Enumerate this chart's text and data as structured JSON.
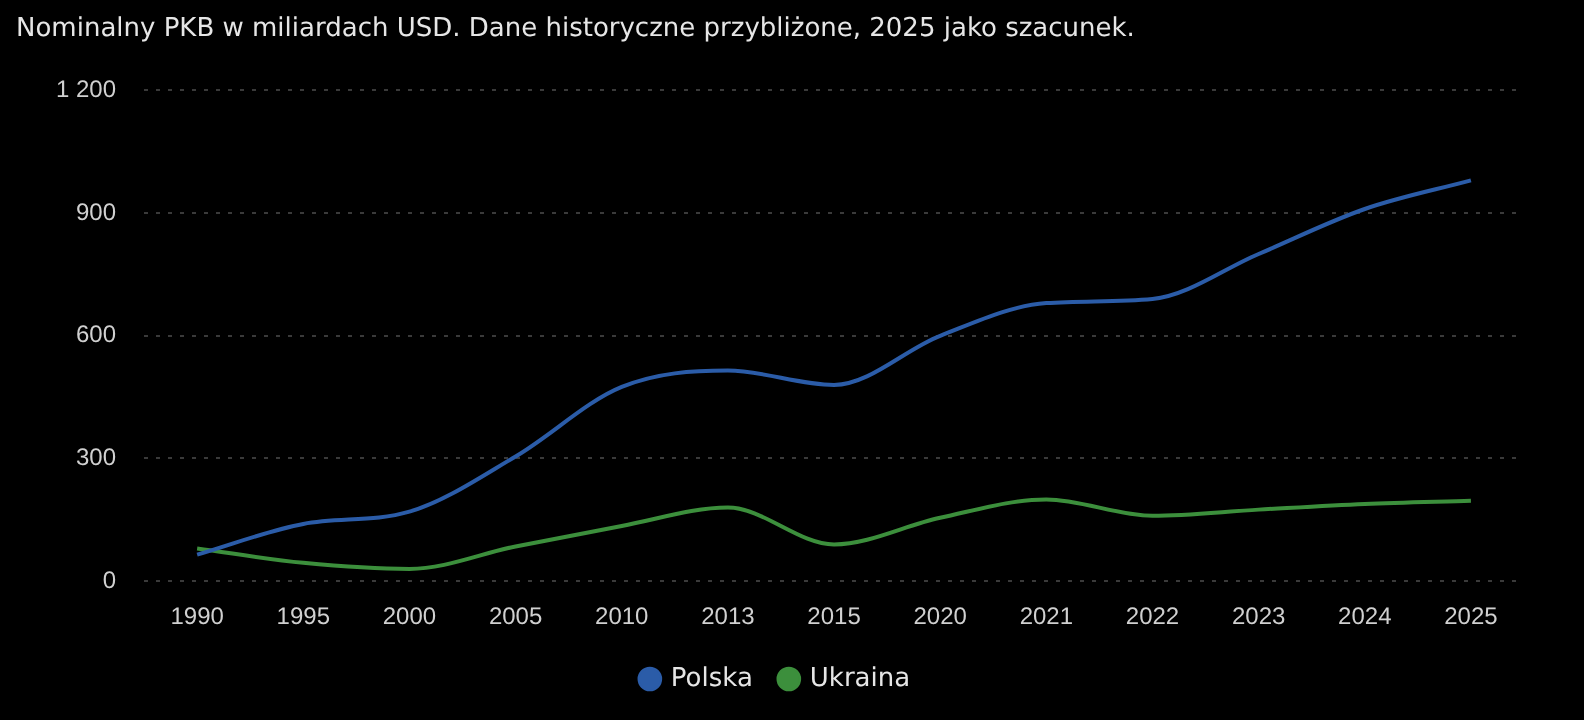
{
  "chart_data": {
    "type": "line",
    "title": "Nominalny PKB w miliardach USD. Dane historyczne przybliżone, 2025 jako szacunek.",
    "categories": [
      "1990",
      "1995",
      "2000",
      "2005",
      "2010",
      "2013",
      "2015",
      "2020",
      "2021",
      "2022",
      "2023",
      "2024",
      "2025"
    ],
    "series": [
      {
        "name": "Polska",
        "color": "#2b5ca8",
        "values": [
          65,
          140,
          170,
          305,
          475,
          515,
          480,
          600,
          680,
          690,
          800,
          910,
          980
        ]
      },
      {
        "name": "Ukraina",
        "color": "#3c8f3c",
        "values": [
          80,
          45,
          30,
          85,
          135,
          180,
          90,
          155,
          200,
          160,
          175,
          189,
          197
        ]
      }
    ],
    "ylim": [
      0,
      1200
    ],
    "yticks": [
      0,
      300,
      600,
      900,
      {
        "value": 1200,
        "label": "1 200"
      }
    ],
    "grid": "y",
    "legend": "bottom",
    "marker": "none",
    "line_style": "solid"
  }
}
